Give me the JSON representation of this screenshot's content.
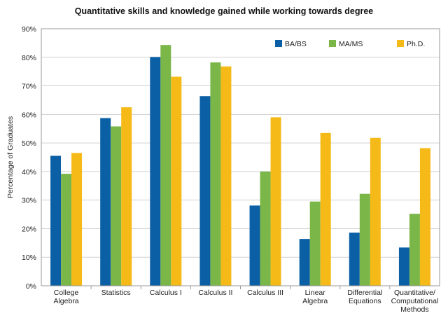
{
  "chart_data": {
    "type": "bar",
    "title": "Quantitative skills and knowledge gained while working towards degree",
    "xlabel": "",
    "ylabel": "Percentage of Graduates",
    "ylim": [
      0,
      90
    ],
    "yticks": [
      0,
      10,
      20,
      30,
      40,
      50,
      60,
      70,
      80,
      90
    ],
    "ytick_labels": [
      "0%",
      "10%",
      "20%",
      "30%",
      "40%",
      "50%",
      "60%",
      "70%",
      "80%",
      "90%"
    ],
    "grid": true,
    "legend_position": "top-right",
    "categories": [
      [
        "College",
        "Algebra"
      ],
      [
        "Statistics"
      ],
      [
        "Calculus I"
      ],
      [
        "Calculus II"
      ],
      [
        "Calculus III"
      ],
      [
        "Linear",
        "Algebra"
      ],
      [
        "Differential",
        "Equations"
      ],
      [
        "Quantitative/",
        "Computational",
        "Methods"
      ]
    ],
    "series": [
      {
        "name": "BA/BS",
        "color": "#0b5fa5",
        "values": [
          45.5,
          58.7,
          80.1,
          66.4,
          28.1,
          16.4,
          18.6,
          13.4
        ]
      },
      {
        "name": "MA/MS",
        "color": "#7ab648",
        "values": [
          39.2,
          55.8,
          84.3,
          78.2,
          40.0,
          29.5,
          32.2,
          25.2
        ]
      },
      {
        "name": "Ph.D.",
        "color": "#f5b918",
        "values": [
          46.5,
          62.5,
          73.2,
          76.8,
          59.0,
          53.5,
          51.8,
          48.2
        ]
      }
    ]
  }
}
